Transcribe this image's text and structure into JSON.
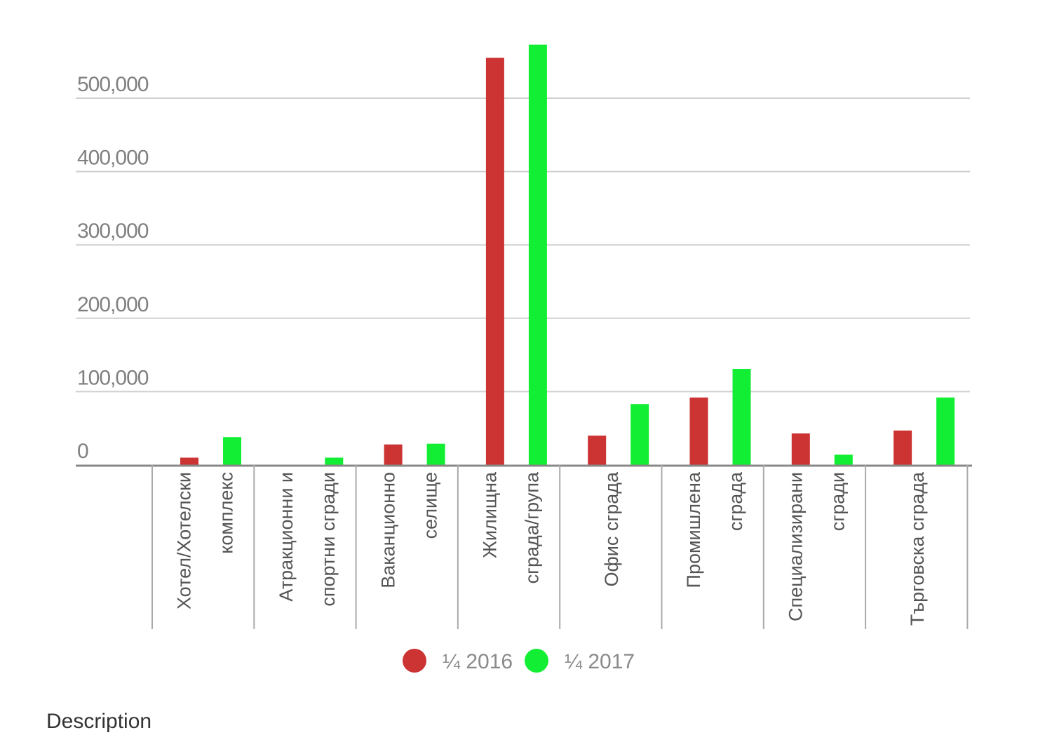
{
  "chart_data": {
    "type": "bar",
    "categories": [
      [
        "Хотел/Хотелски",
        "комплекс"
      ],
      [
        "Атракционни и",
        "спортни сгради"
      ],
      [
        "Ваканционно",
        "селище"
      ],
      [
        "Жилищна",
        "сграда/група"
      ],
      [
        "Офис сграда"
      ],
      [
        "Промишлена",
        "сграда"
      ],
      [
        "Специализирани",
        "сгради"
      ],
      [
        "Търговска сграда"
      ]
    ],
    "series": [
      {
        "name": "¼ 2016",
        "color": "#cc3333",
        "values": [
          10000,
          0,
          28000,
          555000,
          40000,
          92000,
          43000,
          47000
        ]
      },
      {
        "name": "¼ 2017",
        "color": "#11ee33",
        "values": [
          38000,
          10000,
          29000,
          573000,
          83000,
          131000,
          14000,
          92000
        ]
      }
    ],
    "yticks": [
      "0",
      "100,000",
      "200,000",
      "300,000",
      "400,000",
      "500,000"
    ],
    "ylim": [
      0,
      600000
    ],
    "grid": true,
    "legend": "bottom-center",
    "title": "",
    "xlabel": "",
    "ylabel": ""
  },
  "footer": {
    "description_label": "Description"
  }
}
